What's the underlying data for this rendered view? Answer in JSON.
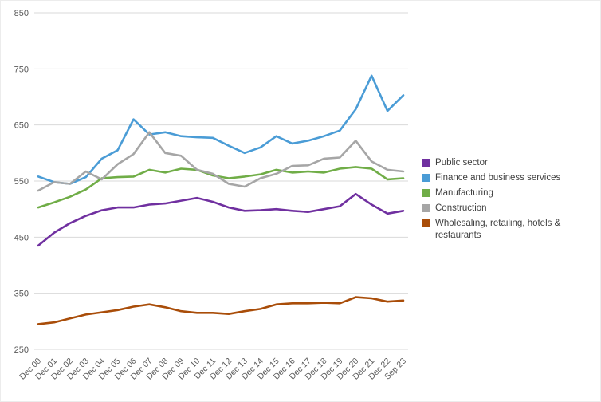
{
  "chart_data": {
    "type": "line",
    "title": "",
    "xlabel": "",
    "ylabel": "",
    "ylim": [
      250,
      850
    ],
    "yticks": [
      250,
      350,
      450,
      550,
      650,
      750,
      850
    ],
    "grid": true,
    "grid_color": "#d9d9d9",
    "axis_color": "#595959",
    "legend_position": "right",
    "x": [
      "Dec 00",
      "Dec 01",
      "Dec 02",
      "Dec 03",
      "Dec 04",
      "Dec 05",
      "Dec 06",
      "Dec 07",
      "Dec 08",
      "Dec 09",
      "Dec 10",
      "Dec 11",
      "Dec 12",
      "Dec 13",
      "Dec 14",
      "Dec 15",
      "Dec 16",
      "Dec 17",
      "Dec 18",
      "Dec 19",
      "Dec 20",
      "Dec 21",
      "Dec 22",
      "Sep 23"
    ],
    "series": [
      {
        "name": "Public sector",
        "color": "#7030a0",
        "values": [
          435,
          458,
          475,
          488,
          498,
          503,
          503,
          508,
          510,
          515,
          520,
          513,
          503,
          497,
          498,
          500,
          497,
          495,
          500,
          505,
          527,
          508,
          492,
          497
        ]
      },
      {
        "name": "Finance and business services",
        "color": "#4a9cd6",
        "values": [
          558,
          548,
          545,
          557,
          590,
          605,
          660,
          633,
          637,
          630,
          628,
          627,
          613,
          600,
          610,
          630,
          617,
          622,
          630,
          640,
          678,
          738,
          675,
          703
        ]
      },
      {
        "name": "Manufacturing",
        "color": "#70ad47",
        "values": [
          503,
          512,
          522,
          535,
          555,
          557,
          558,
          570,
          565,
          572,
          570,
          560,
          555,
          558,
          562,
          570,
          565,
          567,
          565,
          572,
          575,
          572,
          553,
          555
        ]
      },
      {
        "name": "Construction",
        "color": "#a6a6a6",
        "values": [
          533,
          548,
          545,
          567,
          553,
          580,
          598,
          637,
          600,
          595,
          570,
          563,
          545,
          540,
          555,
          563,
          577,
          578,
          590,
          592,
          622,
          585,
          570,
          567
        ]
      },
      {
        "name": "Wholesaling, retailing, hotels & restaurants",
        "color": "#a94d09",
        "values": [
          295,
          298,
          305,
          312,
          316,
          320,
          326,
          330,
          325,
          318,
          315,
          315,
          313,
          318,
          322,
          330,
          332,
          332,
          333,
          332,
          343,
          341,
          335,
          337
        ]
      }
    ]
  }
}
